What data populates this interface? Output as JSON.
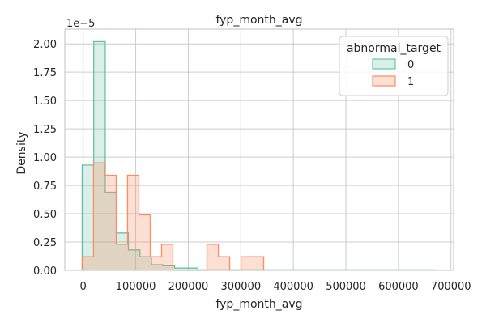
{
  "chart_data": {
    "type": "histogram",
    "title": "fyp_month_avg",
    "xlabel": "fyp_month_avg",
    "ylabel": "Density",
    "y_scale_label": "1e−5",
    "y_scale_factor": 1e-05,
    "xlim": [
      -35000,
      705000
    ],
    "ylim": [
      0,
      2.13
    ],
    "x_ticks": [
      0,
      100000,
      200000,
      300000,
      400000,
      500000,
      600000,
      700000
    ],
    "x_tick_labels": [
      "0",
      "100000",
      "200000",
      "300000",
      "400000",
      "500000",
      "600000",
      "700000"
    ],
    "y_ticks": [
      0,
      0.25,
      0.5,
      0.75,
      1.0,
      1.25,
      1.5,
      1.75,
      2.0
    ],
    "y_tick_labels": [
      "0.00",
      "0.25",
      "0.50",
      "0.75",
      "1.00",
      "1.25",
      "1.50",
      "1.75",
      "2.00"
    ],
    "grid": true,
    "legend": {
      "title": "abnormal_target",
      "placement": "top-right"
    },
    "series": [
      {
        "name": "0",
        "color": "#66c2a5",
        "fill": "rgba(102,194,165,0.25)",
        "bin_edges": [
          -2000,
          20000,
          42000,
          64000,
          86000,
          108000,
          130000,
          152000,
          174000,
          196000,
          218000
        ],
        "densities": [
          0.93,
          2.02,
          0.69,
          0.33,
          0.18,
          0.12,
          0.05,
          0.04,
          0.02,
          0.02
        ],
        "tail_edges": [
          218000,
          670000
        ],
        "tail_value": 0.005
      },
      {
        "name": "1",
        "color": "#fc8d62",
        "fill": "rgba(252,141,98,0.28)",
        "bin_edges": [
          -2000,
          19600,
          41200,
          62800,
          84400,
          106000,
          127600,
          149200,
          170800,
          192400,
          214000,
          235600,
          257200,
          278800,
          300400,
          322000,
          343600
        ],
        "densities": [
          0.12,
          0.95,
          0.84,
          0.23,
          0.84,
          0.49,
          0.12,
          0.23,
          0,
          0,
          0,
          0.23,
          0.12,
          0,
          0.12,
          0.12
        ],
        "tail_edges": [],
        "tail_value": 0
      }
    ]
  }
}
